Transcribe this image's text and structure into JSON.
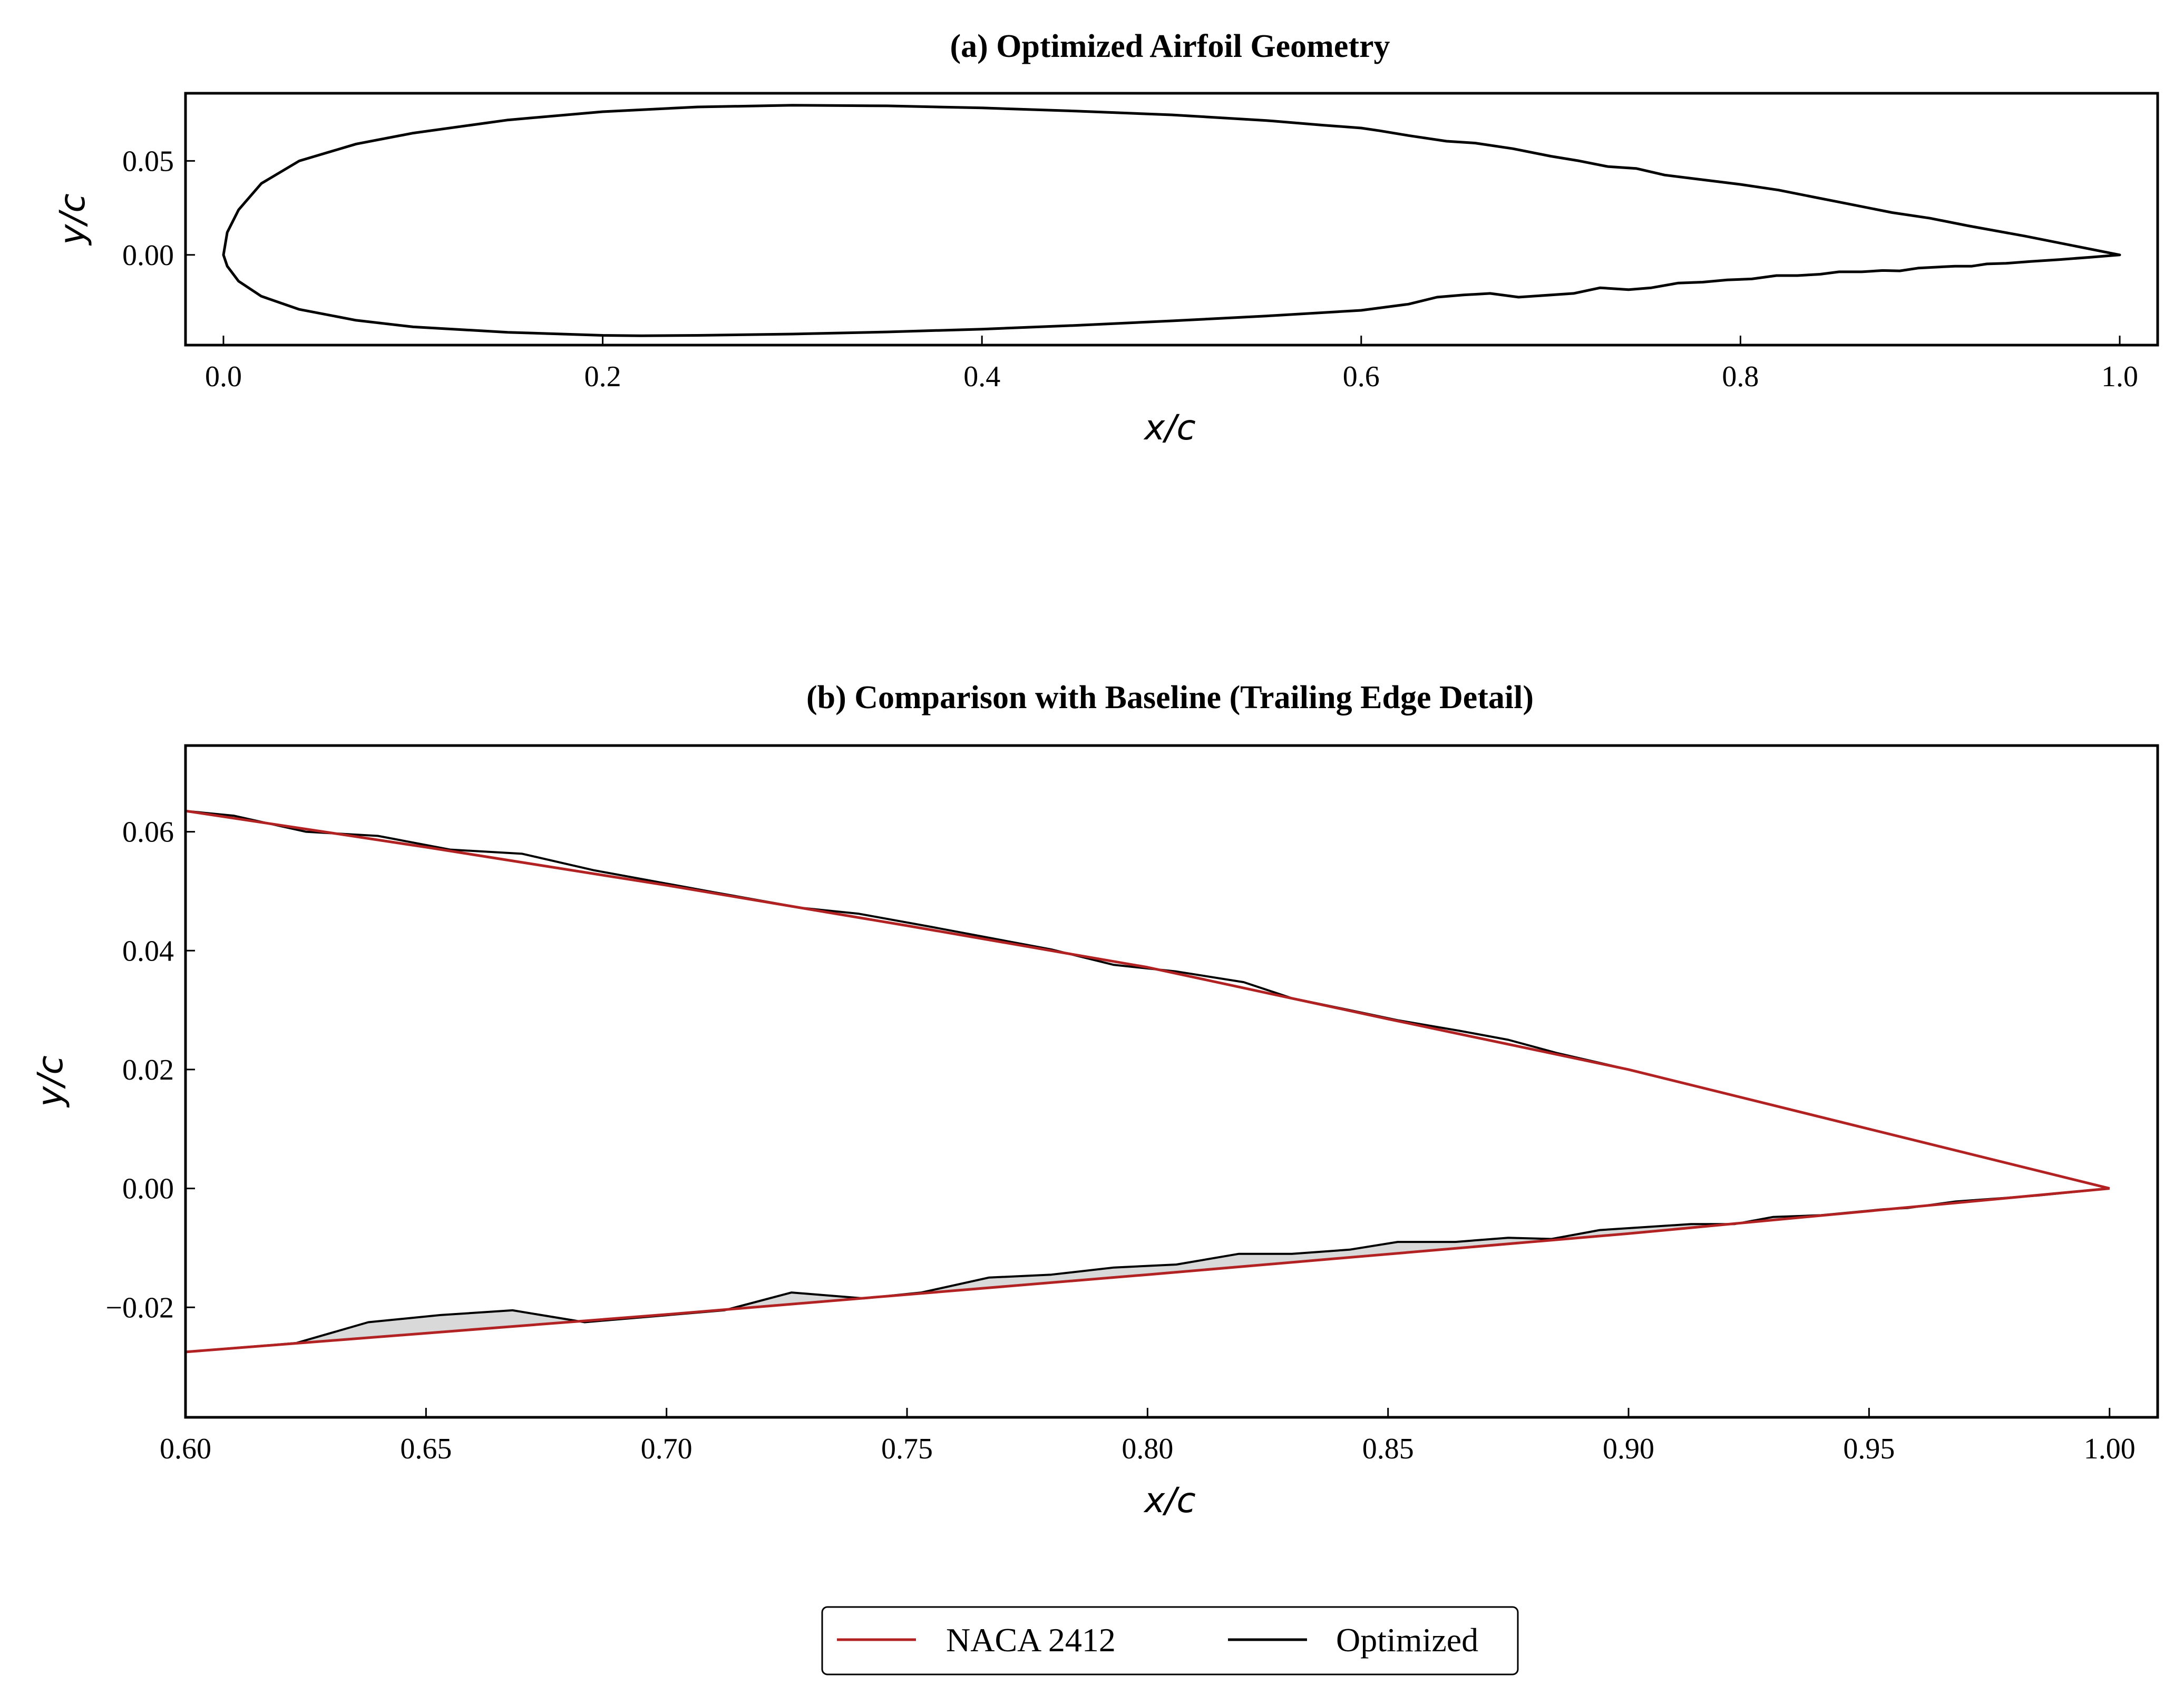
{
  "colors": {
    "naca": "#b22222",
    "optimized": "#000000",
    "fill": "#d9d9d9",
    "frame": "#000000"
  },
  "legend": {
    "placement": "bottom-center",
    "entries": [
      "NACA 2412",
      "Optimized"
    ]
  },
  "chart_data": [
    {
      "type": "line",
      "title": "(a) Optimized Airfoil Geometry",
      "xlabel": "x/c",
      "ylabel": "y/c",
      "xlim": [
        -0.02,
        1.02
      ],
      "ylim": [
        -0.048,
        0.086
      ],
      "xticks": [
        0.0,
        0.2,
        0.4,
        0.6,
        0.8,
        1.0
      ],
      "xtick_labels": [
        "0.0",
        "0.2",
        "0.4",
        "0.6",
        "0.8",
        "1.0"
      ],
      "yticks": [
        0.0,
        0.05
      ],
      "ytick_labels": [
        "0.00",
        "0.05"
      ],
      "grid": false,
      "series": [
        {
          "name": "Optimized",
          "color": "#000000",
          "x": [
            1.0,
            0.95,
            0.92,
            0.9,
            0.88,
            0.86,
            0.85,
            0.84,
            0.82,
            0.8,
            0.78,
            0.76,
            0.745,
            0.73,
            0.715,
            0.7,
            0.68,
            0.66,
            0.645,
            0.625,
            0.61,
            0.6,
            0.58,
            0.55,
            0.5,
            0.45,
            0.4,
            0.35,
            0.3,
            0.25,
            0.2,
            0.15,
            0.1,
            0.07,
            0.04,
            0.02,
            0.008,
            0.002,
            0.0,
            0.002,
            0.008,
            0.02,
            0.04,
            0.07,
            0.1,
            0.15,
            0.2,
            0.22,
            0.25,
            0.3,
            0.35,
            0.4,
            0.45,
            0.5,
            0.55,
            0.6,
            0.625,
            0.64,
            0.654,
            0.668,
            0.683,
            0.712,
            0.726,
            0.741,
            0.753,
            0.767,
            0.78,
            0.793,
            0.806,
            0.819,
            0.83,
            0.842,
            0.852,
            0.864,
            0.875,
            0.884,
            0.894,
            0.913,
            0.922,
            0.93,
            0.94,
            0.953,
            0.968,
            0.985,
            1.0
          ],
          "y": [
            0.0,
            0.01,
            0.0155,
            0.0195,
            0.0225,
            0.0265,
            0.0285,
            0.0305,
            0.0345,
            0.0375,
            0.04,
            0.0425,
            0.046,
            0.047,
            0.05,
            0.0525,
            0.0565,
            0.0595,
            0.0605,
            0.0635,
            0.066,
            0.0675,
            0.069,
            0.0715,
            0.0745,
            0.0765,
            0.0782,
            0.0793,
            0.0796,
            0.0787,
            0.0762,
            0.0718,
            0.0648,
            0.059,
            0.05,
            0.038,
            0.024,
            0.012,
            0.0,
            -0.006,
            -0.014,
            -0.022,
            -0.029,
            -0.0348,
            -0.0383,
            -0.0412,
            -0.0428,
            -0.043,
            -0.0428,
            -0.0421,
            -0.041,
            -0.0395,
            -0.0375,
            -0.0351,
            -0.0325,
            -0.0295,
            -0.0262,
            -0.0225,
            -0.0213,
            -0.0205,
            -0.0225,
            -0.0205,
            -0.0175,
            -0.0185,
            -0.0175,
            -0.015,
            -0.0145,
            -0.0133,
            -0.0128,
            -0.011,
            -0.011,
            -0.0103,
            -0.009,
            -0.009,
            -0.0083,
            -0.0085,
            -0.007,
            -0.006,
            -0.006,
            -0.0048,
            -0.0045,
            -0.0035,
            -0.0025,
            -0.0012,
            0.0
          ]
        }
      ]
    },
    {
      "type": "line",
      "title": "(b) Comparison with Baseline (Trailing Edge Detail)",
      "xlabel": "x/c",
      "ylabel": "y/c",
      "xlim": [
        0.6,
        1.01
      ],
      "ylim": [
        -0.0385,
        0.0745
      ],
      "xticks": [
        0.6,
        0.65,
        0.7,
        0.75,
        0.8,
        0.85,
        0.9,
        0.95,
        1.0
      ],
      "xtick_labels": [
        "0.60",
        "0.65",
        "0.70",
        "0.75",
        "0.80",
        "0.85",
        "0.90",
        "0.95",
        "1.00"
      ],
      "yticks": [
        -0.02,
        0.0,
        0.02,
        0.04,
        0.06
      ],
      "ytick_labels": [
        "−0.02",
        "0.00",
        "0.02",
        "0.04",
        "0.06"
      ],
      "grid": false,
      "fill_between": "lower surface, Optimized vs NACA 2412",
      "series": [
        {
          "name": "NACA 2412",
          "color": "#b22222",
          "upper": {
            "x": [
              0.6,
              0.65,
              0.7,
              0.75,
              0.8,
              0.85,
              0.9,
              0.95,
              1.0
            ],
            "y": [
              0.0635,
              0.0574,
              0.051,
              0.0442,
              0.0372,
              0.0285,
              0.02,
              0.01,
              0.0
            ]
          },
          "lower": {
            "x": [
              0.6,
              0.7,
              0.8,
              0.9,
              1.0
            ],
            "y": [
              -0.0275,
              -0.0212,
              -0.0145,
              -0.0076,
              0.0
            ]
          }
        },
        {
          "name": "Optimized",
          "color": "#000000",
          "upper": {
            "x": [
              0.6,
              0.61,
              0.625,
              0.64,
              0.655,
              0.67,
              0.685,
              0.71,
              0.728,
              0.74,
              0.755,
              0.78,
              0.793,
              0.806,
              0.82,
              0.83,
              0.842,
              0.852,
              0.865,
              0.875,
              0.885,
              0.9,
              0.95,
              1.0
            ],
            "y": [
              0.0635,
              0.0627,
              0.06,
              0.0593,
              0.057,
              0.0563,
              0.0535,
              0.0498,
              0.0472,
              0.0462,
              0.044,
              0.0402,
              0.0376,
              0.0365,
              0.0347,
              0.032,
              0.03,
              0.0283,
              0.0265,
              0.025,
              0.0228,
              0.02,
              0.01,
              0.0
            ]
          },
          "lower": {
            "x": [
              0.6,
              0.623,
              0.638,
              0.653,
              0.668,
              0.683,
              0.712,
              0.726,
              0.741,
              0.753,
              0.767,
              0.78,
              0.793,
              0.806,
              0.819,
              0.83,
              0.842,
              0.852,
              0.864,
              0.875,
              0.884,
              0.894,
              0.913,
              0.922,
              0.93,
              0.94,
              0.953,
              0.958,
              0.968,
              0.985,
              1.0
            ],
            "y": [
              -0.0275,
              -0.026,
              -0.0225,
              -0.0213,
              -0.0205,
              -0.0225,
              -0.0205,
              -0.0175,
              -0.0185,
              -0.0175,
              -0.015,
              -0.0145,
              -0.0133,
              -0.0128,
              -0.011,
              -0.011,
              -0.0103,
              -0.009,
              -0.009,
              -0.0083,
              -0.0085,
              -0.007,
              -0.006,
              -0.006,
              -0.0048,
              -0.0045,
              -0.0035,
              -0.0033,
              -0.0022,
              -0.0012,
              0.0
            ]
          }
        }
      ]
    }
  ]
}
